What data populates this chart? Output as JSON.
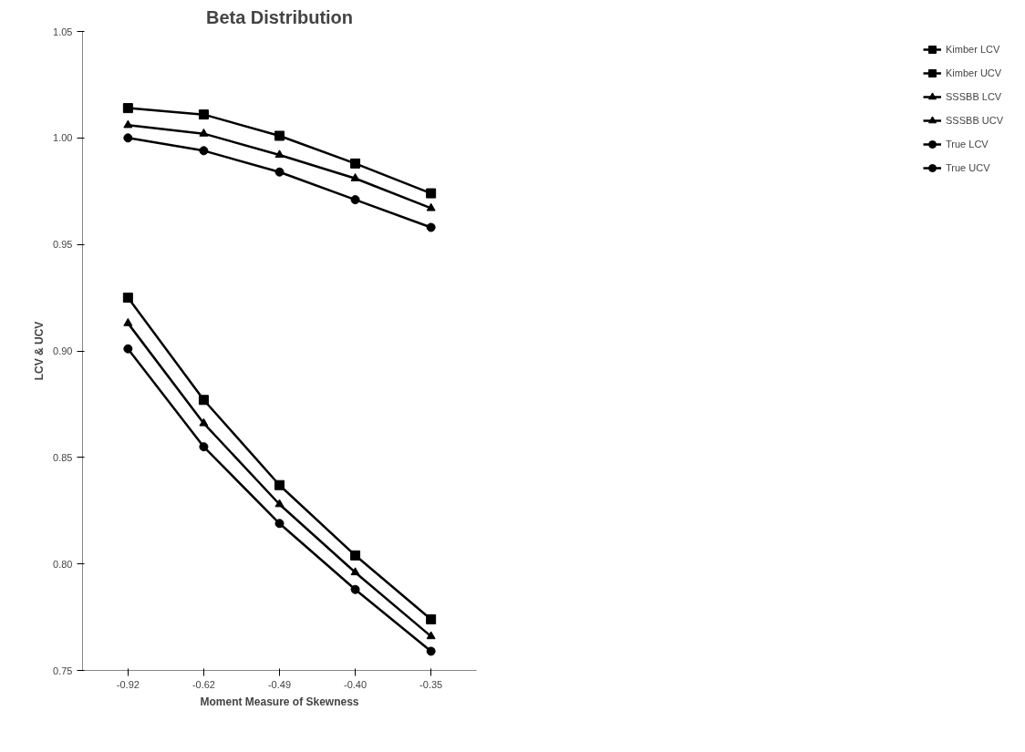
{
  "chart_data": {
    "type": "line",
    "title": "Beta Distribution",
    "xlabel": "Moment Measure of Skewness",
    "ylabel": "LCV & UCV",
    "categories": [
      "-0.92",
      "-0.62",
      "-0.49",
      "-0.40",
      "-0.35"
    ],
    "ylim": [
      0.75,
      1.05
    ],
    "yticks": [
      0.75,
      {
        "value": 0.8,
        "label": "0.80"
      },
      0.85,
      {
        "value": 0.9,
        "label": "0.90"
      },
      0.95,
      {
        "value": 1.0,
        "label": "1.00"
      },
      1.05
    ],
    "grid": false,
    "legend": "right",
    "line_style": "solid",
    "series": [
      {
        "name": "Kimber LCV",
        "color": "#000000",
        "marker": "square",
        "values": [
          0.925,
          0.877,
          0.837,
          0.804,
          0.774
        ]
      },
      {
        "name": "Kimber UCV",
        "color": "#000000",
        "marker": "square",
        "values": [
          1.014,
          1.011,
          1.001,
          0.988,
          0.974
        ]
      },
      {
        "name": "SSSBB LCV",
        "color": "#000000",
        "marker": "triangle",
        "values": [
          0.913,
          0.866,
          0.828,
          0.796,
          0.766
        ]
      },
      {
        "name": "SSSBB UCV",
        "color": "#000000",
        "marker": "triangle",
        "values": [
          1.006,
          1.002,
          0.992,
          0.981,
          0.967
        ]
      },
      {
        "name": "True LCV",
        "color": "#000000",
        "marker": "circle",
        "values": [
          0.901,
          0.855,
          0.819,
          0.788,
          0.759
        ]
      },
      {
        "name": "True UCV",
        "color": "#000000",
        "marker": "circle",
        "values": [
          1.0,
          0.994,
          0.984,
          0.971,
          0.958
        ]
      }
    ]
  }
}
